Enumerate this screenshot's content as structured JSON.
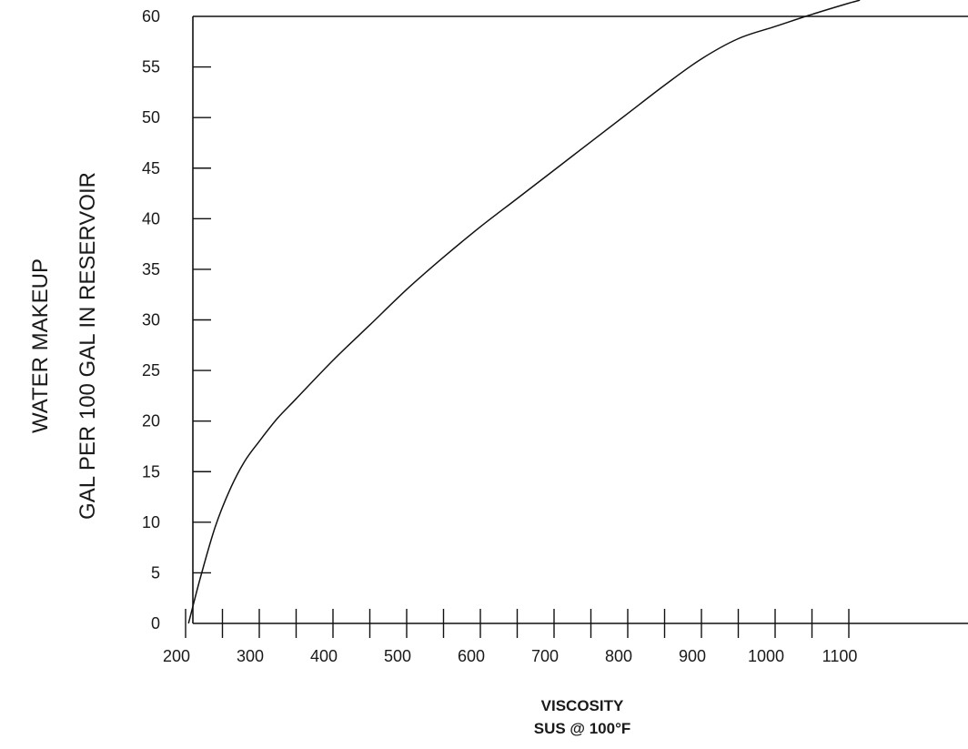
{
  "chart_data": {
    "type": "line",
    "title": "",
    "ylabel_lines": [
      "WATER MAKEUP",
      "GAL PER 100 GAL IN RESERVOIR"
    ],
    "xlabel_lines": [
      "VISCOSITY",
      "SUS @ 100°F"
    ],
    "xlim": [
      140,
      1140
    ],
    "ylim": [
      0,
      60
    ],
    "x_major_ticks": [
      200,
      300,
      400,
      500,
      600,
      700,
      800,
      900,
      1000,
      1100
    ],
    "x_minor_ticks": [
      250,
      350,
      450,
      550,
      650,
      750,
      850,
      950,
      1050
    ],
    "y_ticks": [
      0,
      5,
      10,
      15,
      20,
      25,
      30,
      35,
      40,
      45,
      50,
      55,
      60
    ],
    "grid": false,
    "line_color": "#111111",
    "series": [
      {
        "x": [
          204,
          220,
          240,
          260,
          280,
          300,
          325,
          350,
          400,
          450,
          500,
          550,
          600,
          650,
          700,
          750,
          800,
          850,
          900,
          950,
          1000,
          1050,
          1100,
          1115
        ],
        "y": [
          0,
          4.5,
          9.5,
          13.2,
          16.0,
          18.0,
          20.3,
          22.2,
          26.0,
          29.5,
          33.0,
          36.2,
          39.2,
          42.0,
          44.8,
          47.6,
          50.4,
          53.2,
          55.8,
          57.8,
          59.0,
          60.2,
          61.3,
          61.6
        ]
      }
    ]
  }
}
